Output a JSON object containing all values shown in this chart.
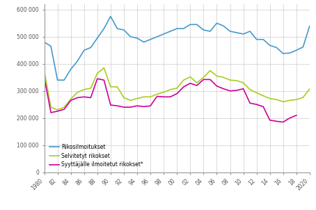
{
  "years": [
    1980,
    1981,
    1982,
    1983,
    1984,
    1985,
    1986,
    1987,
    1988,
    1989,
    1990,
    1991,
    1992,
    1993,
    1994,
    1995,
    1996,
    1997,
    1998,
    1999,
    2000,
    2001,
    2002,
    2003,
    2004,
    2005,
    2006,
    2007,
    2008,
    2009,
    2010,
    2011,
    2012,
    2013,
    2014,
    2015,
    2016,
    2017,
    2018,
    2019,
    2020
  ],
  "rikosilmoitukset": [
    480000,
    465000,
    340000,
    340000,
    380000,
    410000,
    450000,
    460000,
    495000,
    530000,
    575000,
    530000,
    525000,
    500000,
    495000,
    480000,
    490000,
    500000,
    510000,
    520000,
    530000,
    530000,
    545000,
    545000,
    525000,
    520000,
    550000,
    540000,
    520000,
    515000,
    510000,
    520000,
    490000,
    490000,
    468000,
    460000,
    438000,
    440000,
    450000,
    462000,
    540000
  ],
  "selvitetyt": [
    375000,
    240000,
    230000,
    240000,
    270000,
    295000,
    305000,
    310000,
    365000,
    385000,
    315000,
    315000,
    275000,
    265000,
    272000,
    278000,
    278000,
    288000,
    295000,
    305000,
    310000,
    340000,
    352000,
    330000,
    350000,
    375000,
    355000,
    350000,
    340000,
    338000,
    330000,
    305000,
    293000,
    282000,
    272000,
    268000,
    260000,
    265000,
    268000,
    276000,
    308000
  ],
  "syyttajalle": [
    350000,
    220000,
    225000,
    232000,
    265000,
    275000,
    278000,
    275000,
    345000,
    340000,
    248000,
    245000,
    240000,
    240000,
    245000,
    242000,
    245000,
    280000,
    278000,
    278000,
    290000,
    315000,
    328000,
    320000,
    342000,
    342000,
    318000,
    308000,
    300000,
    302000,
    308000,
    255000,
    250000,
    242000,
    192000,
    188000,
    185000,
    200000,
    210000,
    -1,
    -1
  ],
  "color_blue": "#4499cc",
  "color_yellow": "#aacc22",
  "color_magenta": "#cc0099",
  "ylim": [
    0,
    620000
  ],
  "yticks": [
    0,
    100000,
    200000,
    300000,
    400000,
    500000,
    600000
  ],
  "ytick_labels": [
    "0",
    "100 000",
    "200 000",
    "300 000",
    "400 000",
    "500 000",
    "600 000"
  ],
  "xtick_years": [
    1980,
    1982,
    1984,
    1986,
    1988,
    1990,
    1992,
    1994,
    1996,
    1998,
    2000,
    2002,
    2004,
    2006,
    2008,
    2010,
    2012,
    2014,
    2016,
    2018,
    2020
  ],
  "xtick_labels": [
    "1980",
    "82",
    "84",
    "86",
    "88",
    "90",
    "92",
    "94",
    "96",
    "98",
    "00",
    "02",
    "04",
    "06",
    "08",
    "10",
    "12",
    "14",
    "16",
    "18",
    "2020"
  ],
  "legend_labels": [
    "Rikosilmoitukset",
    "Selvitetyt rikokset",
    "Syyttäjälle ilmoitetut rikokset*"
  ],
  "grid_color": "#cccccc",
  "line_width": 1.2,
  "bg_color": "#ffffff"
}
